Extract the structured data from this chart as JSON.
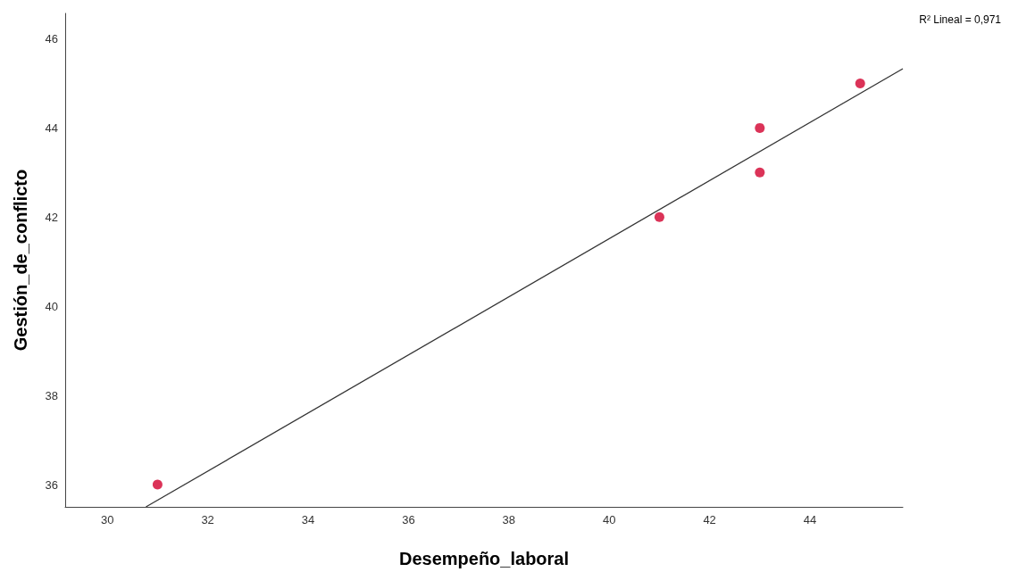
{
  "chart_data": {
    "type": "scatter",
    "xlabel": "Desempeño_laboral",
    "ylabel": "Gestión_de_conflicto",
    "xlim": [
      29.16,
      45.85
    ],
    "xticks": [
      30,
      32,
      34,
      36,
      38,
      40,
      42,
      44
    ],
    "ylim": [
      35.5,
      46.57
    ],
    "yticks": [
      36,
      38,
      40,
      42,
      44,
      46
    ],
    "grid": false,
    "annotations": [
      "R² Lineal = 0,971"
    ],
    "series": [
      {
        "marker": "circle",
        "color": "#d2002e",
        "x": [
          31,
          41,
          43,
          43,
          45
        ],
        "values": [
          36,
          42,
          44,
          43,
          45
        ]
      },
      {
        "type": "line",
        "marker": "none",
        "color": "#333333",
        "x": [
          30.77,
          45.85
        ],
        "values": [
          35.5,
          45.33
        ]
      }
    ]
  }
}
